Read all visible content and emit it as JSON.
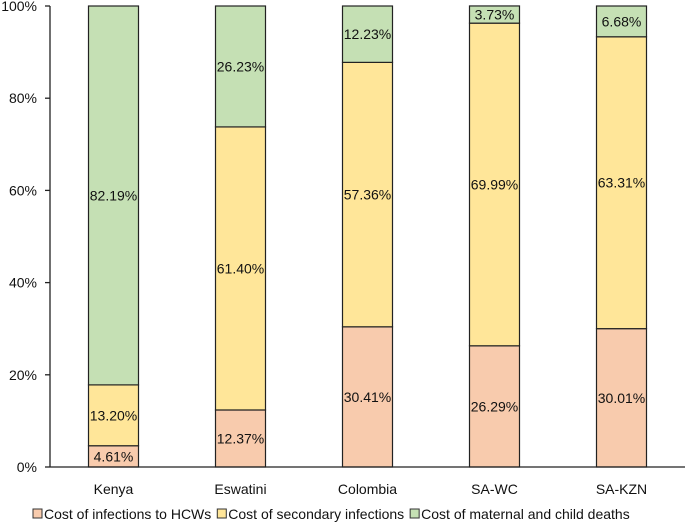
{
  "chart_data": {
    "type": "bar",
    "stacked": true,
    "title": "",
    "xlabel": "",
    "ylabel": "",
    "ylim": [
      0,
      100
    ],
    "yticks": [
      "0%",
      "20%",
      "40%",
      "60%",
      "80%",
      "100%"
    ],
    "ytick_values": [
      0,
      20,
      40,
      60,
      80,
      100
    ],
    "grid": false,
    "legend_position": "bottom",
    "categories": [
      "Kenya",
      "Eswatini",
      "Colombia",
      "SA-WC",
      "SA-KZN"
    ],
    "series": [
      {
        "name": "Cost of infections to HCWs",
        "color": "#f8cbad",
        "values": [
          4.61,
          12.37,
          30.41,
          26.29,
          30.01
        ],
        "labels": [
          "4.61%",
          "12.37%",
          "30.41%",
          "26.29%",
          "30.01%"
        ]
      },
      {
        "name": "Cost of secondary infections",
        "color": "#ffe699",
        "values": [
          13.2,
          61.4,
          57.36,
          69.99,
          63.31
        ],
        "labels": [
          "13.20%",
          "61.40%",
          "57.36%",
          "69.99%",
          "63.31%"
        ]
      },
      {
        "name": "Cost of maternal and child deaths",
        "color": "#c5e0b4",
        "values": [
          82.19,
          26.23,
          12.23,
          3.73,
          6.68
        ],
        "labels": [
          "82.19%",
          "26.23%",
          "12.23%",
          "3.73%",
          "6.68%"
        ]
      }
    ]
  }
}
